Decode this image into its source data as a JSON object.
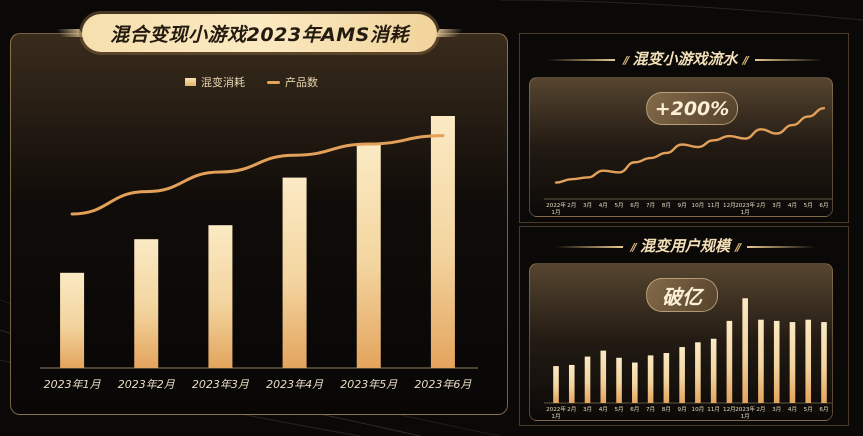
{
  "main": {
    "title": "混合变现小游戏2023年AMS消耗",
    "legend": {
      "bar_label": "混变消耗",
      "line_label": "产品数"
    }
  },
  "flow": {
    "title": "混变小游戏流水",
    "badge": "+200%"
  },
  "users": {
    "title": "混变用户规模",
    "badge": "破亿"
  },
  "colors": {
    "gold_light": "#f6e2b6",
    "gold_dark": "#e4a35c",
    "background": "#0b0907"
  },
  "chart_data": [
    {
      "type": "bar",
      "title": "混合变现小游戏2023年AMS消耗",
      "categories": [
        "2023年1月",
        "2023年2月",
        "2023年3月",
        "2023年4月",
        "2023年5月",
        "2023年6月"
      ],
      "series": [
        {
          "name": "混变消耗",
          "type": "bar",
          "values": [
            34,
            46,
            51,
            68,
            80,
            90
          ]
        },
        {
          "name": "产品数",
          "type": "line",
          "values": [
            55,
            63,
            70,
            76,
            80,
            83
          ]
        }
      ],
      "ylim": [
        0,
        100
      ],
      "grid": false,
      "legend": "top-center"
    },
    {
      "type": "line",
      "title": "混变小游戏流水",
      "categories": [
        "2022年1月",
        "2月",
        "3月",
        "4月",
        "5月",
        "6月",
        "7月",
        "8月",
        "9月",
        "10月",
        "11月",
        "12月",
        "2023年1月",
        "2月",
        "3月",
        "4月",
        "5月",
        "6月"
      ],
      "values": [
        10,
        14,
        16,
        24,
        22,
        34,
        39,
        45,
        55,
        52,
        60,
        65,
        62,
        73,
        68,
        78,
        88,
        98
      ],
      "ylim": [
        0,
        110
      ],
      "annotations": [
        "+200%"
      ]
    },
    {
      "type": "bar",
      "title": "混变用户规模",
      "categories": [
        "2022年1月",
        "2月",
        "3月",
        "4月",
        "5月",
        "6月",
        "7月",
        "8月",
        "9月",
        "10月",
        "11月",
        "12月",
        "2023年1月",
        "2月",
        "3月",
        "4月",
        "5月",
        "6月"
      ],
      "values": [
        31,
        32,
        39,
        44,
        38,
        34,
        40,
        42,
        47,
        51,
        54,
        69,
        88,
        70,
        69,
        68,
        70,
        68
      ],
      "ylim": [
        0,
        100
      ],
      "annotations": [
        "破亿"
      ]
    }
  ]
}
